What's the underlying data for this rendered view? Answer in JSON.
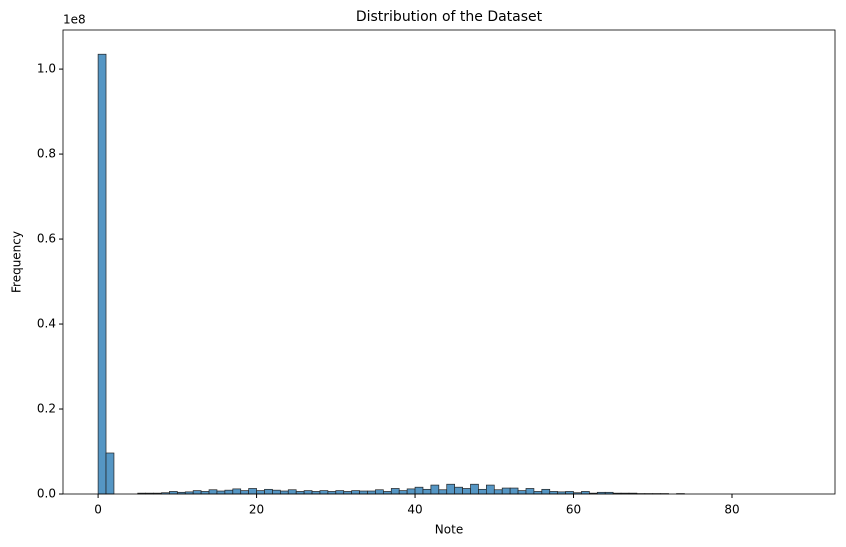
{
  "chart_data": {
    "type": "histogram",
    "title": "Distribution of the Dataset",
    "x_label": "Note",
    "y_label": "Frequency",
    "y_offset_label": "1e8",
    "color": "#5596c4",
    "edgecolor": "#222222",
    "bins": [
      0,
      1,
      2,
      3,
      4,
      5,
      6,
      7,
      8,
      9,
      10,
      11,
      12,
      13,
      14,
      15,
      16,
      17,
      18,
      19,
      20,
      21,
      22,
      23,
      24,
      25,
      26,
      27,
      28,
      29,
      30,
      31,
      32,
      33,
      34,
      35,
      36,
      37,
      38,
      39,
      40,
      41,
      42,
      43,
      44,
      45,
      46,
      47,
      48,
      49,
      50,
      51,
      52,
      53,
      54,
      55,
      56,
      57,
      58,
      59,
      60,
      61,
      62,
      63,
      64,
      65,
      66,
      67,
      68,
      69,
      70,
      71,
      72,
      73,
      74,
      75,
      76,
      77,
      78,
      79,
      80,
      81,
      82,
      83,
      84,
      85,
      86,
      87,
      88,
      89
    ],
    "counts": [
      103500000,
      9650000,
      0,
      0,
      0,
      200000,
      200000,
      200000,
      300000,
      600000,
      400000,
      500000,
      800000,
      600000,
      1000000,
      700000,
      900000,
      1200000,
      800000,
      1300000,
      800000,
      1100000,
      900000,
      700000,
      1000000,
      600000,
      800000,
      600000,
      800000,
      600000,
      800000,
      600000,
      800000,
      700000,
      700000,
      1000000,
      600000,
      1300000,
      800000,
      1200000,
      1600000,
      1100000,
      2100000,
      1000000,
      2300000,
      1600000,
      1300000,
      2300000,
      1100000,
      2100000,
      1000000,
      1400000,
      1400000,
      800000,
      1300000,
      600000,
      1100000,
      600000,
      500000,
      600000,
      300000,
      600000,
      200000,
      400000,
      400000,
      200000,
      200000,
      200000,
      100000,
      100000,
      100000,
      100000,
      0,
      100000,
      0,
      0,
      0,
      0,
      0,
      0,
      0,
      0,
      0,
      0,
      0,
      0,
      0,
      0,
      0
    ],
    "xlim": [
      -4.43,
      93.0
    ],
    "xticks": [
      0,
      20,
      40,
      60,
      80
    ],
    "ylim": [
      0,
      109200000
    ],
    "yticks": [
      {
        "value": 0,
        "label": "0.0"
      },
      {
        "value": 20000000,
        "label": "0.2"
      },
      {
        "value": 40000000,
        "label": "0.4"
      },
      {
        "value": 60000000,
        "label": "0.6"
      },
      {
        "value": 80000000,
        "label": "0.8"
      },
      {
        "value": 100000000,
        "label": "1.0"
      }
    ]
  }
}
